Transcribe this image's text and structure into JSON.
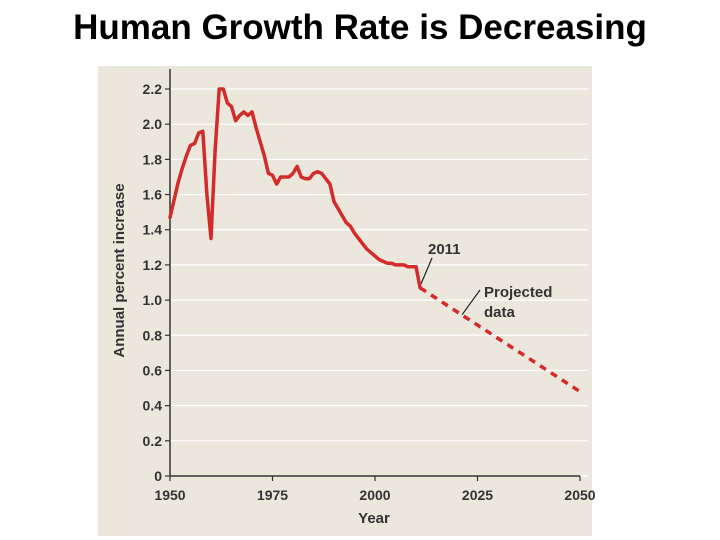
{
  "slide": {
    "title": "Human Growth Rate is Decreasing"
  },
  "colors": {
    "panel": "#ebe7dc",
    "series": "#d42a2a",
    "axis": "#333333",
    "grid": "#ffffff"
  },
  "chart_data": {
    "type": "line",
    "xlabel": "Year",
    "ylabel": "Annual percent increase",
    "xlim": [
      1950,
      2050
    ],
    "ylim": [
      0,
      2.2
    ],
    "xticks": [
      "1950",
      "1975",
      "2000",
      "2025",
      "2050"
    ],
    "yticks": [
      "0",
      "0.2",
      "0.4",
      "0.6",
      "0.8",
      "1.0",
      "1.2",
      "1.4",
      "1.6",
      "1.8",
      "2.0",
      "2.2"
    ],
    "grid": true,
    "series": [
      {
        "style": "solid",
        "x": [
          1950,
          1951,
          1952,
          1953,
          1954,
          1955,
          1956,
          1957,
          1958,
          1959,
          1960,
          1961,
          1962,
          1963,
          1964,
          1965,
          1966,
          1967,
          1968,
          1969,
          1970,
          1971,
          1972,
          1973,
          1974,
          1975,
          1976,
          1977,
          1978,
          1979,
          1980,
          1981,
          1982,
          1983,
          1984,
          1985,
          1986,
          1987,
          1988,
          1989,
          1990,
          1991,
          1992,
          1993,
          1994,
          1995,
          1996,
          1997,
          1998,
          1999,
          2000,
          2001,
          2002,
          2003,
          2004,
          2005,
          2006,
          2007,
          2008,
          2009,
          2010,
          2011
        ],
        "y": [
          1.47,
          1.57,
          1.67,
          1.75,
          1.82,
          1.88,
          1.89,
          1.95,
          1.96,
          1.6,
          1.35,
          1.85,
          2.2,
          2.2,
          2.12,
          2.1,
          2.02,
          2.05,
          2.07,
          2.05,
          2.07,
          1.98,
          1.9,
          1.82,
          1.72,
          1.71,
          1.66,
          1.7,
          1.7,
          1.7,
          1.72,
          1.76,
          1.7,
          1.69,
          1.69,
          1.72,
          1.73,
          1.72,
          1.69,
          1.66,
          1.56,
          1.52,
          1.48,
          1.44,
          1.42,
          1.38,
          1.35,
          1.32,
          1.29,
          1.27,
          1.25,
          1.23,
          1.22,
          1.21,
          1.21,
          1.2,
          1.2,
          1.2,
          1.19,
          1.19,
          1.19,
          1.07
        ]
      },
      {
        "style": "dashed",
        "x": [
          2011,
          2050
        ],
        "y": [
          1.07,
          0.48
        ]
      }
    ],
    "annotations": [
      {
        "text": "2011",
        "x": 2011,
        "y": 1.07
      },
      {
        "text": "Projected data",
        "x": 2021,
        "y": 0.9
      }
    ]
  }
}
